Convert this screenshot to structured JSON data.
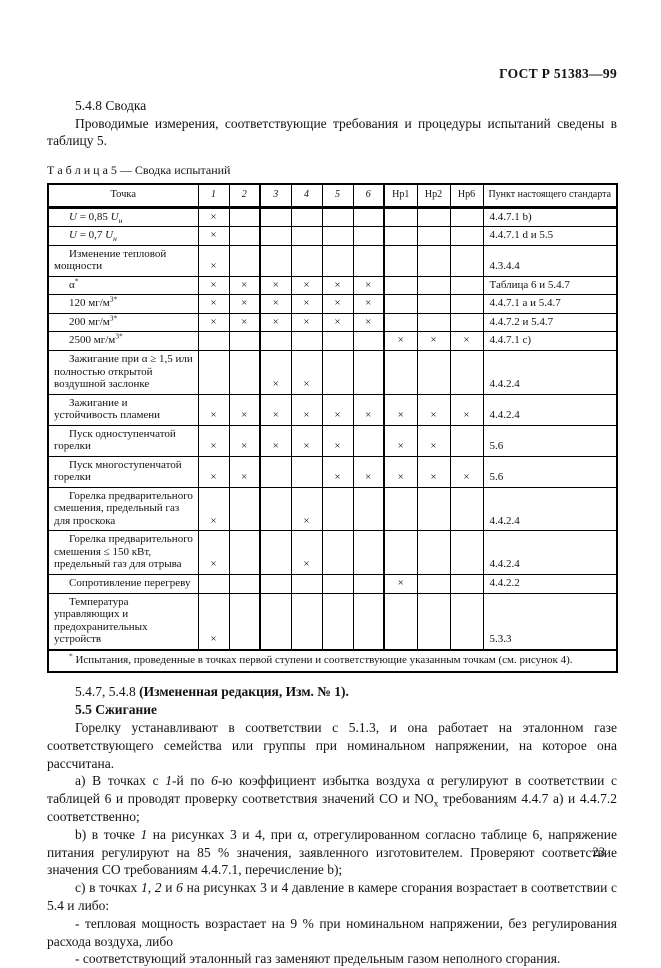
{
  "page": {
    "doc_number": "ГОСТ Р 51383—99",
    "page_number": "23"
  },
  "section": {
    "heading": "5.4.8 Сводка",
    "intro": "Проводимые измерения, соответствующие требования и процедуры испытаний сведены в таблицу 5."
  },
  "table": {
    "caption": "Т а б л и ц а 5 — Сводка испытаний",
    "mark_symbol": "×",
    "columns": {
      "point": "Точка",
      "marks": [
        "1",
        "2",
        "3",
        "4",
        "5",
        "6",
        "Нр1",
        "Нр2",
        "Нр6"
      ],
      "clause": "Пункт настоящего стандарта"
    },
    "rows": [
      {
        "label": [
          {
            "t": "U",
            "i": true
          },
          {
            "t": " = 0,85 "
          },
          {
            "t": "U",
            "i": true
          },
          {
            "t": "н",
            "sub": true,
            "i": true
          }
        ],
        "marks": [
          1,
          0,
          0,
          0,
          0,
          0,
          0,
          0,
          0
        ],
        "clause": "4.4.7.1 b)"
      },
      {
        "label": [
          {
            "t": "U",
            "i": true
          },
          {
            "t": " = 0,7 "
          },
          {
            "t": "U",
            "i": true
          },
          {
            "t": "н",
            "sub": true,
            "i": true
          }
        ],
        "marks": [
          1,
          0,
          0,
          0,
          0,
          0,
          0,
          0,
          0
        ],
        "clause": "4.4.7.1 d и 5.5"
      },
      {
        "label": "Изменение тепловой мощности",
        "marks": [
          1,
          0,
          0,
          0,
          0,
          0,
          0,
          0,
          0
        ],
        "clause": "4.3.4.4"
      },
      {
        "label": [
          {
            "t": "α"
          },
          {
            "t": "*",
            "sup": true
          }
        ],
        "marks": [
          1,
          1,
          1,
          1,
          1,
          1,
          0,
          0,
          0
        ],
        "clause": "Таблица 6 и 5.4.7"
      },
      {
        "label": [
          {
            "t": "120 мг/м"
          },
          {
            "t": "3*",
            "sup": true
          }
        ],
        "marks": [
          1,
          1,
          1,
          1,
          1,
          1,
          0,
          0,
          0
        ],
        "clause": "4.4.7.1 а и 5.4.7"
      },
      {
        "label": [
          {
            "t": "200 мг/м"
          },
          {
            "t": "3*",
            "sup": true
          }
        ],
        "marks": [
          1,
          1,
          1,
          1,
          1,
          1,
          0,
          0,
          0
        ],
        "clause": "4.4.7.2 и 5.4.7"
      },
      {
        "label": [
          {
            "t": "2500 мг/м"
          },
          {
            "t": "3*",
            "sup": true
          }
        ],
        "marks": [
          0,
          0,
          0,
          0,
          0,
          0,
          1,
          1,
          1
        ],
        "clause": "4.4.7.1 с)"
      },
      {
        "label": "Зажигание при α ≥ 1,5 или полностью открытой воздушной заслонке",
        "marks": [
          0,
          0,
          1,
          1,
          0,
          0,
          0,
          0,
          0
        ],
        "clause": "4.4.2.4"
      },
      {
        "label": "Зажигание и устойчивость пламени",
        "marks": [
          1,
          1,
          1,
          1,
          1,
          1,
          1,
          1,
          1
        ],
        "clause": "4.4.2.4"
      },
      {
        "label": "Пуск одноступенчатой горелки",
        "marks": [
          1,
          1,
          1,
          1,
          1,
          0,
          1,
          1,
          0
        ],
        "clause": "5.6"
      },
      {
        "label": "Пуск многоступенчатой горелки",
        "marks": [
          1,
          1,
          0,
          0,
          1,
          1,
          1,
          1,
          1
        ],
        "clause": "5.6"
      },
      {
        "label": "Горелка предварительного смешения, предельный газ для проскока",
        "marks": [
          1,
          0,
          0,
          1,
          0,
          0,
          0,
          0,
          0
        ],
        "clause": "4.4.2.4"
      },
      {
        "label": "Горелка предварительного смешения ≤ 150 кВт, предельный газ для отрыва",
        "marks": [
          1,
          0,
          0,
          1,
          0,
          0,
          0,
          0,
          0
        ],
        "clause": "4.4.2.4"
      },
      {
        "label": "Сопротивление перегреву",
        "marks": [
          0,
          0,
          0,
          0,
          0,
          0,
          1,
          0,
          0
        ],
        "clause": "4.4.2.2"
      },
      {
        "label": "Температура управляющих и предохранительных устройств",
        "marks": [
          1,
          0,
          0,
          0,
          0,
          0,
          0,
          0,
          0
        ],
        "clause": "5.3.3"
      }
    ],
    "footnote": [
      {
        "t": "*",
        "sup": true
      },
      {
        "t": " Испытания, проведенные в точках первой ступени и соответствующие указанным точкам (см. рисунок 4)."
      }
    ]
  },
  "amendment": {
    "refs": "5.4.7, 5.4.8 ",
    "note": "(Измененная редакция, Изм. № 1)."
  },
  "subsection": {
    "heading": "5.5 Сжигание"
  },
  "paragraphs": [
    "Горелку устанавливают в соответствии с 5.1.3, и она работает на эталонном газе соответствующего семейства или группы при номинальном напряжении, на которое она рассчитана.",
    [
      {
        "t": "а) В точках с "
      },
      {
        "t": "1",
        "i": true
      },
      {
        "t": "-й по "
      },
      {
        "t": "6",
        "i": true
      },
      {
        "t": "-ю коэффициент избытка воздуха α регулируют в соответствии с таблицей 6 и проводят проверку соответствия значений СО и NO"
      },
      {
        "t": "x",
        "sub": true
      },
      {
        "t": " требованиям 4.4.7 а) и 4.4.7.2 соответственно;"
      }
    ],
    [
      {
        "t": "b) в точке "
      },
      {
        "t": "1",
        "i": true
      },
      {
        "t": " на рисунках 3 и 4, при α, отрегулированном согласно таблице 6, напряжение питания регулируют на 85 % значения, заявленного изготовителем. Проверяют соответствие значения СО требованиям 4.4.7.1, перечисление b);"
      }
    ],
    [
      {
        "t": "с) в точках "
      },
      {
        "t": "1, 2",
        "i": true
      },
      {
        "t": " и "
      },
      {
        "t": "6",
        "i": true
      },
      {
        "t": " на рисунках 3 и 4 давление в камере сгорания возрастает в соответствии с 5.4 и либо:"
      }
    ],
    "- тепловая мощность возрастает на 9 % при номинальном напряжении, без регулирования расхода воздуха, либо",
    "- соответствующий эталонный газ заменяют предельным газом неполного сгорания."
  ]
}
